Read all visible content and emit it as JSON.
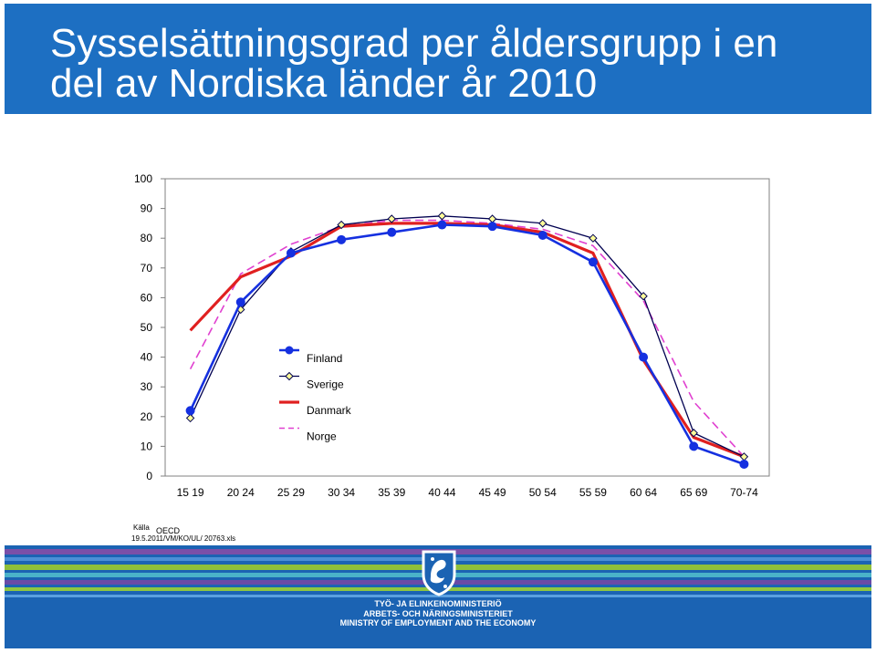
{
  "header": {
    "title_line_1": "Sysselsättningsgrad per åldersgrupp i en",
    "title_line_2": "del av Nordiska länder år 2010",
    "background_color": "#1d6fc2"
  },
  "chart_data": {
    "type": "line",
    "categories": [
      "15 19",
      "20 24",
      "25 29",
      "30 34",
      "35 39",
      "40 44",
      "45 49",
      "50 54",
      "55 59",
      "60 64",
      "65 69",
      "70-74"
    ],
    "ylim": [
      0,
      100
    ],
    "yticks": [
      0,
      10,
      20,
      30,
      40,
      50,
      60,
      70,
      80,
      90,
      100
    ],
    "series": [
      {
        "name": "Finland",
        "color": "#1530e0",
        "style": "marker-circle",
        "values": [
          22,
          58.5,
          75,
          79.5,
          82,
          84.5,
          84,
          81,
          72,
          40,
          10,
          4
        ]
      },
      {
        "name": "Sverige",
        "color": "#000050",
        "style": "marker-diamond",
        "values": [
          19.5,
          56,
          75.5,
          84.5,
          86.5,
          87.5,
          86.5,
          85,
          80,
          60.5,
          14.5,
          6.5
        ]
      },
      {
        "name": "Danmark",
        "color": "#e02020",
        "style": "thick",
        "values": [
          49,
          67,
          74,
          84,
          85,
          85,
          84.5,
          82,
          75,
          39,
          13,
          6.5
        ]
      },
      {
        "name": "Norge",
        "color": "#e040d0",
        "style": "dashed",
        "values": [
          36,
          68,
          78,
          84,
          86,
          86,
          85,
          83,
          77.5,
          59,
          25,
          6.5
        ]
      }
    ],
    "legend_position": "inside-left-bottom"
  },
  "source": {
    "label": "Källa",
    "value": "OECD",
    "file_ref": "19.5.2011/VM/KO/UL/ 20763.xls"
  },
  "footer": {
    "ministry_fi": "TYÖ- JA ELINKEINOMINISTERIÖ",
    "ministry_sv": "ARBETS- OCH NÄRINGSMINISTERIET",
    "ministry_en": "MINISTRY OF EMPLOYMENT AND THE ECONOMY",
    "background_color": "#1b63b3"
  }
}
